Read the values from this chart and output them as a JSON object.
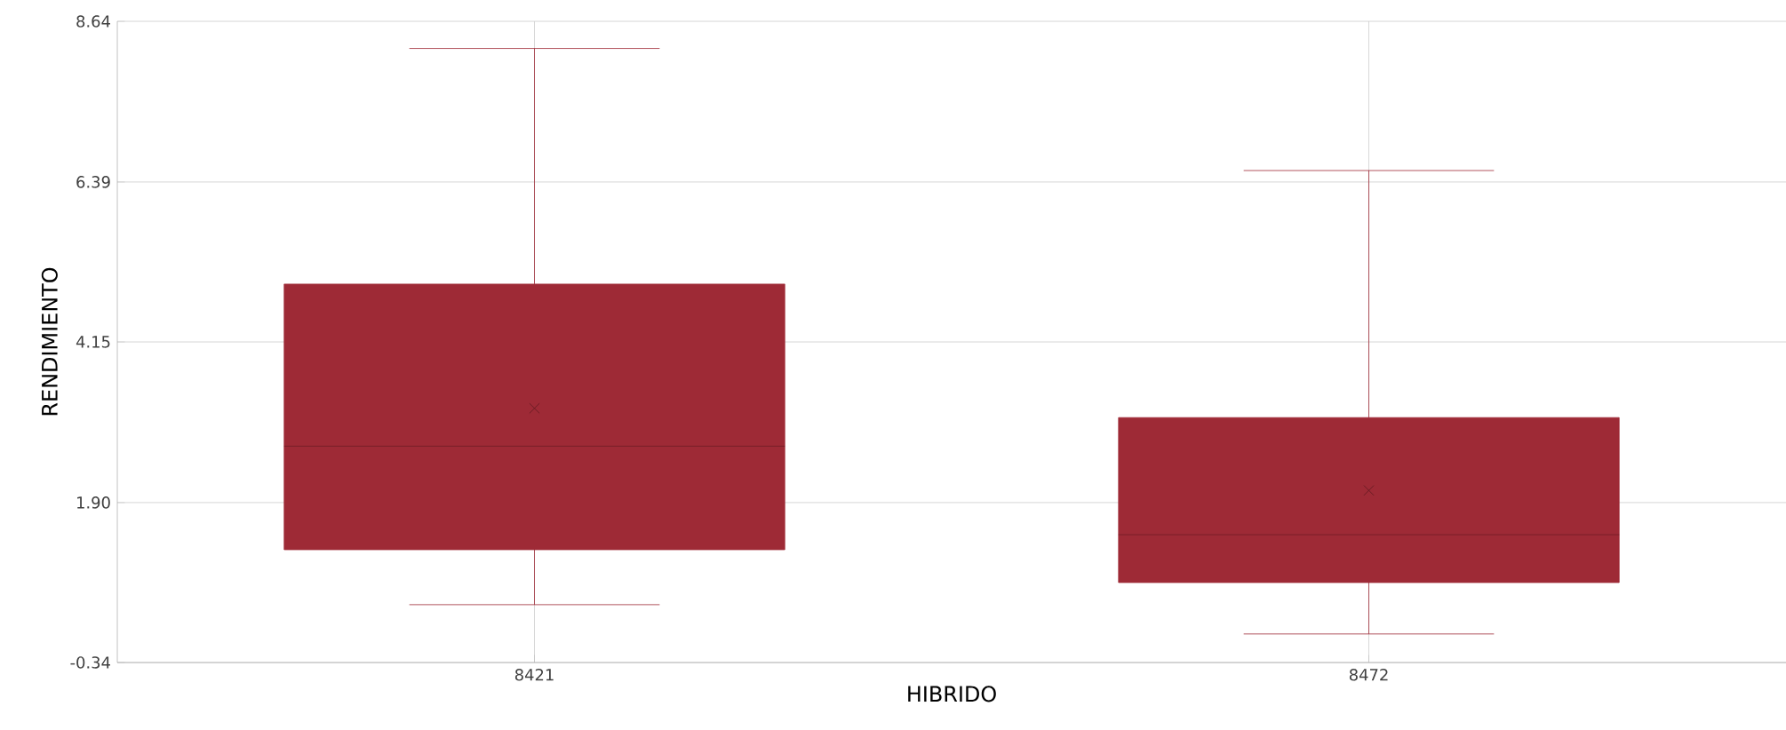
{
  "chart_data": {
    "type": "box",
    "xlabel": "HIBRIDO",
    "ylabel": "RENDIMIENTO",
    "categories": [
      "8421",
      "8472"
    ],
    "boxes": [
      {
        "low": 0.47,
        "q1": 1.24,
        "median": 2.69,
        "q3": 4.96,
        "high": 8.26,
        "mean": 3.22
      },
      {
        "low": 0.06,
        "q1": 0.78,
        "median": 1.45,
        "q3": 3.09,
        "high": 6.55,
        "mean": 2.07
      }
    ],
    "color": "#9e2a36",
    "ylim": [
      -0.34,
      8.64
    ],
    "yticks": [
      -0.34,
      {
        "value": 1.9,
        "label": "1.90"
      },
      4.15,
      6.39,
      8.64
    ],
    "grid": true,
    "marker": "cross"
  }
}
